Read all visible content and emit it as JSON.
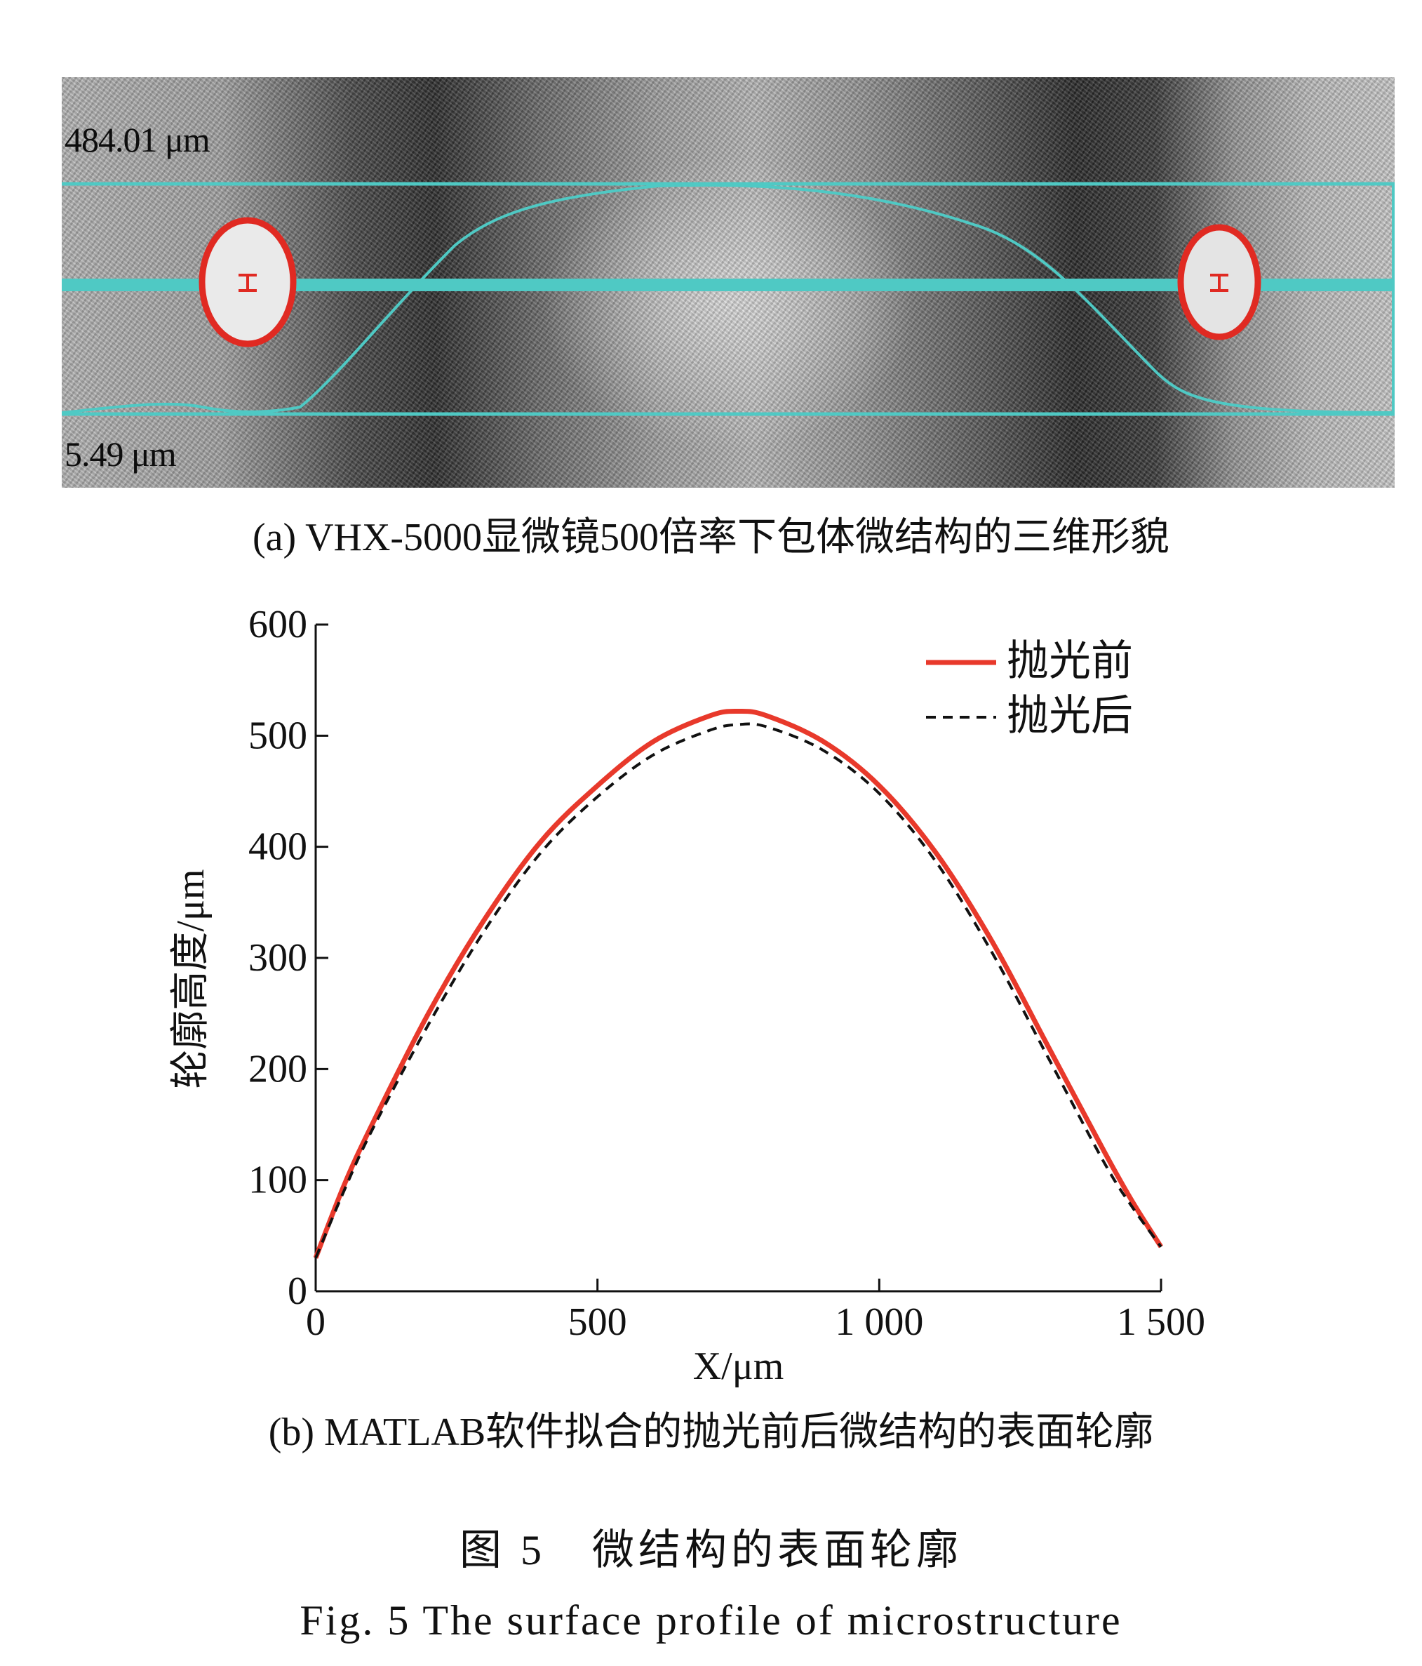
{
  "panel_a": {
    "top_label": "484.01 μm",
    "bottom_label": "5.49 μm",
    "caption": "(a) VHX-5000显微镜500倍率下包体微结构的三维形貌"
  },
  "chart_data": {
    "type": "line",
    "title": "",
    "xlabel": "X/μm",
    "ylabel": "轮廓高度/μm",
    "xlim": [
      0,
      1500
    ],
    "ylim": [
      0,
      600
    ],
    "xticks": [
      0,
      500,
      1000,
      1500
    ],
    "xtick_labels": [
      "0",
      "500",
      "1 000",
      "1 500"
    ],
    "yticks": [
      0,
      100,
      200,
      300,
      400,
      500,
      600
    ],
    "ytick_labels": [
      "0",
      "100",
      "200",
      "300",
      "400",
      "500",
      "600"
    ],
    "grid": false,
    "legend_position": "top-right",
    "series": [
      {
        "name": "抛光前",
        "color": "#e8392b",
        "style": "solid",
        "x": [
          0,
          50,
          100,
          200,
          300,
          400,
          500,
          600,
          700,
          750,
          800,
          900,
          1000,
          1100,
          1200,
          1300,
          1400,
          1450,
          1500
        ],
        "y": [
          30,
          95,
          150,
          250,
          335,
          405,
          455,
          495,
          518,
          522,
          518,
          495,
          455,
          395,
          315,
          220,
          125,
          80,
          40
        ]
      },
      {
        "name": "抛光后",
        "color": "#111111",
        "style": "dashed",
        "x": [
          0,
          50,
          100,
          200,
          300,
          400,
          500,
          600,
          700,
          750,
          800,
          900,
          1000,
          1100,
          1200,
          1300,
          1400,
          1450,
          1500
        ],
        "y": [
          30,
          90,
          145,
          240,
          325,
          395,
          445,
          483,
          505,
          510,
          508,
          487,
          448,
          387,
          305,
          210,
          115,
          75,
          40
        ]
      }
    ]
  },
  "panel_b": {
    "caption": "(b) MATLAB软件拟合的抛光前后微结构的表面轮廓"
  },
  "figure": {
    "caption_cn": "图 5　微结构的表面轮廓",
    "caption_en": "Fig. 5   The surface profile of microstructure"
  }
}
